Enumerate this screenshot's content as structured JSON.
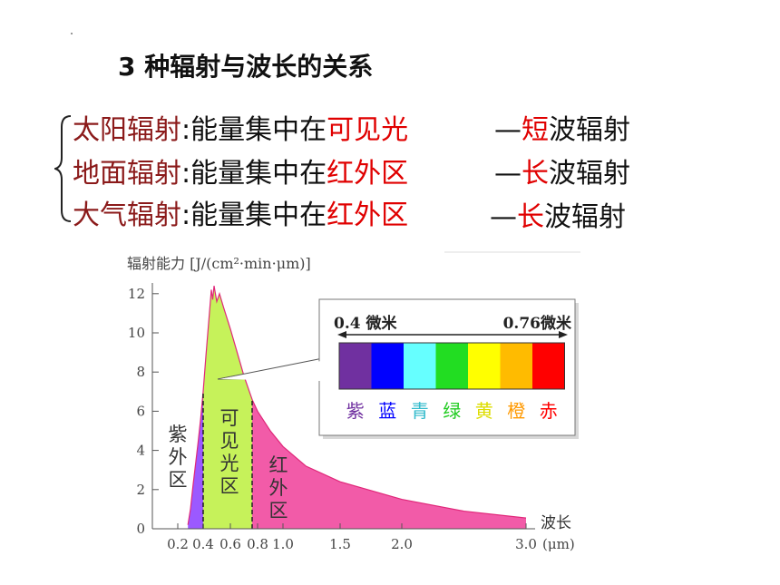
{
  "title": "3 种辐射与波长的关系",
  "rows": [
    {
      "name": "太阳辐射",
      "sep": ":",
      "text": "能量集中在",
      "region": "可见光",
      "dash": "—",
      "kind": "短",
      "suffix": "波辐射"
    },
    {
      "name": "地面辐射",
      "sep": ":",
      "text": "能量集中在",
      "region": "红外区",
      "dash": "—",
      "kind": "长",
      "suffix": "波辐射"
    },
    {
      "name": "大气辐射",
      "sep": ":",
      "text": "能量集中在",
      "region": "红外区",
      "dash": "—",
      "kind": "长",
      "suffix": "波辐射"
    }
  ],
  "chart_data": {
    "type": "area",
    "ylabel": "辐射能力 [J/(cm²·min·μm)]",
    "xlabel": "波长",
    "x_unit": "(μm)",
    "y_ticks": [
      "0",
      "2",
      "4",
      "6",
      "8",
      "10",
      "12"
    ],
    "x_ticks": [
      "0.2",
      "0.4",
      "0.6",
      "0.8",
      "1.0",
      "1.5",
      "2.0",
      "3.0"
    ],
    "ylim": [
      0,
      12.5
    ],
    "regions": [
      {
        "label": "紫外区",
        "lines": [
          "紫",
          "外",
          "区"
        ],
        "range": [
          0.28,
          0.4
        ],
        "color": "#9b59ff"
      },
      {
        "label": "可见光区",
        "lines": [
          "可",
          "见",
          "光",
          "区"
        ],
        "range": [
          0.4,
          0.76
        ],
        "color": "#c6f25a"
      },
      {
        "label": "红外区",
        "lines": [
          "红",
          "外",
          "区"
        ],
        "range": [
          0.76,
          3.0
        ],
        "color": "#f25ba8"
      }
    ],
    "spectrum": {
      "from_label": "0.4 微米",
      "to_label": "0.76微米",
      "bands": [
        {
          "name": "紫",
          "color": "#7030a0",
          "text_color": "#7030a0"
        },
        {
          "name": "蓝",
          "color": "#0000ff",
          "text_color": "#0000ff"
        },
        {
          "name": "青",
          "color": "#66ffff",
          "text_color": "#33bbcc"
        },
        {
          "name": "绿",
          "color": "#22dd22",
          "text_color": "#22cc22"
        },
        {
          "name": "黄",
          "color": "#ffff00",
          "text_color": "#dddd00"
        },
        {
          "name": "橙",
          "color": "#ffbb00",
          "text_color": "#ff9900"
        },
        {
          "name": "赤",
          "color": "#ff0000",
          "text_color": "#ff0000"
        }
      ]
    },
    "curve": [
      [
        0.28,
        0.2
      ],
      [
        0.3,
        1.0
      ],
      [
        0.32,
        2.2
      ],
      [
        0.34,
        3.3
      ],
      [
        0.36,
        4.4
      ],
      [
        0.38,
        5.6
      ],
      [
        0.4,
        7.0
      ],
      [
        0.42,
        8.8
      ],
      [
        0.44,
        10.5
      ],
      [
        0.46,
        12.2
      ],
      [
        0.47,
        11.7
      ],
      [
        0.48,
        12.4
      ],
      [
        0.5,
        11.6
      ],
      [
        0.52,
        12.0
      ],
      [
        0.55,
        11.3
      ],
      [
        0.6,
        10.2
      ],
      [
        0.65,
        9.0
      ],
      [
        0.7,
        7.8
      ],
      [
        0.76,
        6.6
      ],
      [
        0.8,
        6.0
      ],
      [
        0.9,
        5.0
      ],
      [
        1.0,
        4.2
      ],
      [
        1.2,
        3.2
      ],
      [
        1.5,
        2.4
      ],
      [
        2.0,
        1.5
      ],
      [
        2.5,
        0.9
      ],
      [
        3.0,
        0.55
      ]
    ]
  }
}
